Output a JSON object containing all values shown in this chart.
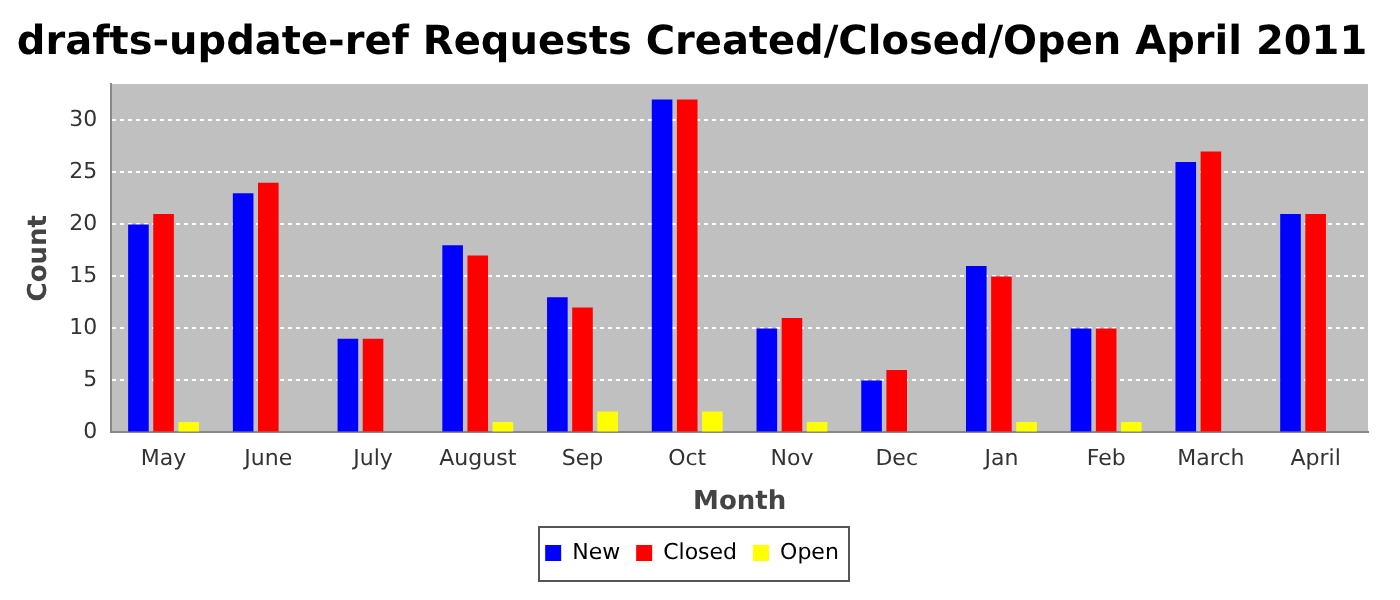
{
  "chart_data": {
    "type": "bar",
    "title": "drafts-update-ref Requests Created/Closed/Open April 2011",
    "xlabel": "Month",
    "ylabel": "Count",
    "categories": [
      "May",
      "June",
      "July",
      "August",
      "Sep",
      "Oct",
      "Nov",
      "Dec",
      "Jan",
      "Feb",
      "March",
      "April"
    ],
    "series": [
      {
        "name": "New",
        "color": "#0000ff",
        "values": [
          20,
          23,
          9,
          18,
          13,
          32,
          10,
          5,
          16,
          10,
          26,
          21
        ]
      },
      {
        "name": "Closed",
        "color": "#ff0000",
        "values": [
          21,
          24,
          9,
          17,
          12,
          32,
          11,
          6,
          15,
          10,
          27,
          21
        ]
      },
      {
        "name": "Open",
        "color": "#ffff00",
        "values": [
          1,
          0,
          0,
          1,
          2,
          2,
          1,
          0,
          1,
          1,
          0,
          0
        ]
      }
    ],
    "ylim": [
      0,
      33.5
    ],
    "yticks": [
      0,
      5,
      10,
      15,
      20,
      25,
      30
    ],
    "grid": "y",
    "legend": "bottom"
  }
}
